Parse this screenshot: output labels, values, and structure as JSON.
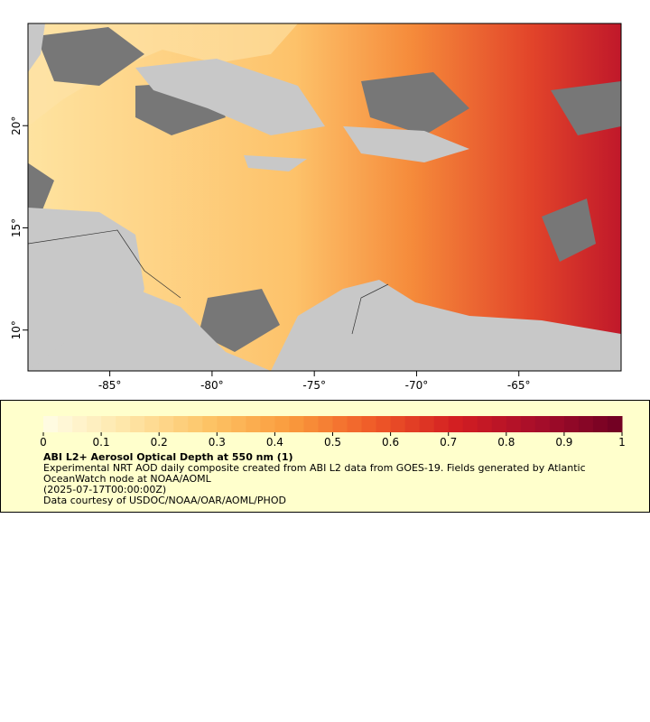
{
  "map": {
    "xlim": [
      -89,
      -60
    ],
    "ylim": [
      8,
      25
    ],
    "xticks": [
      {
        "value": -85,
        "label": "-85°"
      },
      {
        "value": -80,
        "label": "-80°"
      },
      {
        "value": -75,
        "label": "-75°"
      },
      {
        "value": -70,
        "label": "-70°"
      },
      {
        "value": -65,
        "label": "-65°"
      }
    ],
    "yticks": [
      {
        "value": 10,
        "label": "10°"
      },
      {
        "value": 15,
        "label": "15°"
      },
      {
        "value": 20,
        "label": "20°"
      }
    ]
  },
  "colorbar": {
    "range": [
      0,
      1
    ],
    "ticks": [
      0,
      0.1,
      0.2,
      0.3,
      0.4,
      0.5,
      0.6,
      0.7,
      0.8,
      0.9,
      1
    ],
    "colors": [
      "#fffde6",
      "#fee6a8",
      "#fdc466",
      "#fa9a3c",
      "#ef5a28",
      "#d31e22",
      "#a60d2a",
      "#6e0022"
    ]
  },
  "legend": {
    "title": "ABI L2+ Aerosol Optical Depth at 550 nm (1)",
    "description": "Experimental NRT AOD daily composite created from ABI L2 data from GOES-19. Fields generated by Atlantic OceanWatch node at NOAA/AOML",
    "time": "(2025-07-17T00:00:00Z)",
    "credit": "Data courtesy of USDOC/NOAA/OAR/AOML/PHOD"
  }
}
